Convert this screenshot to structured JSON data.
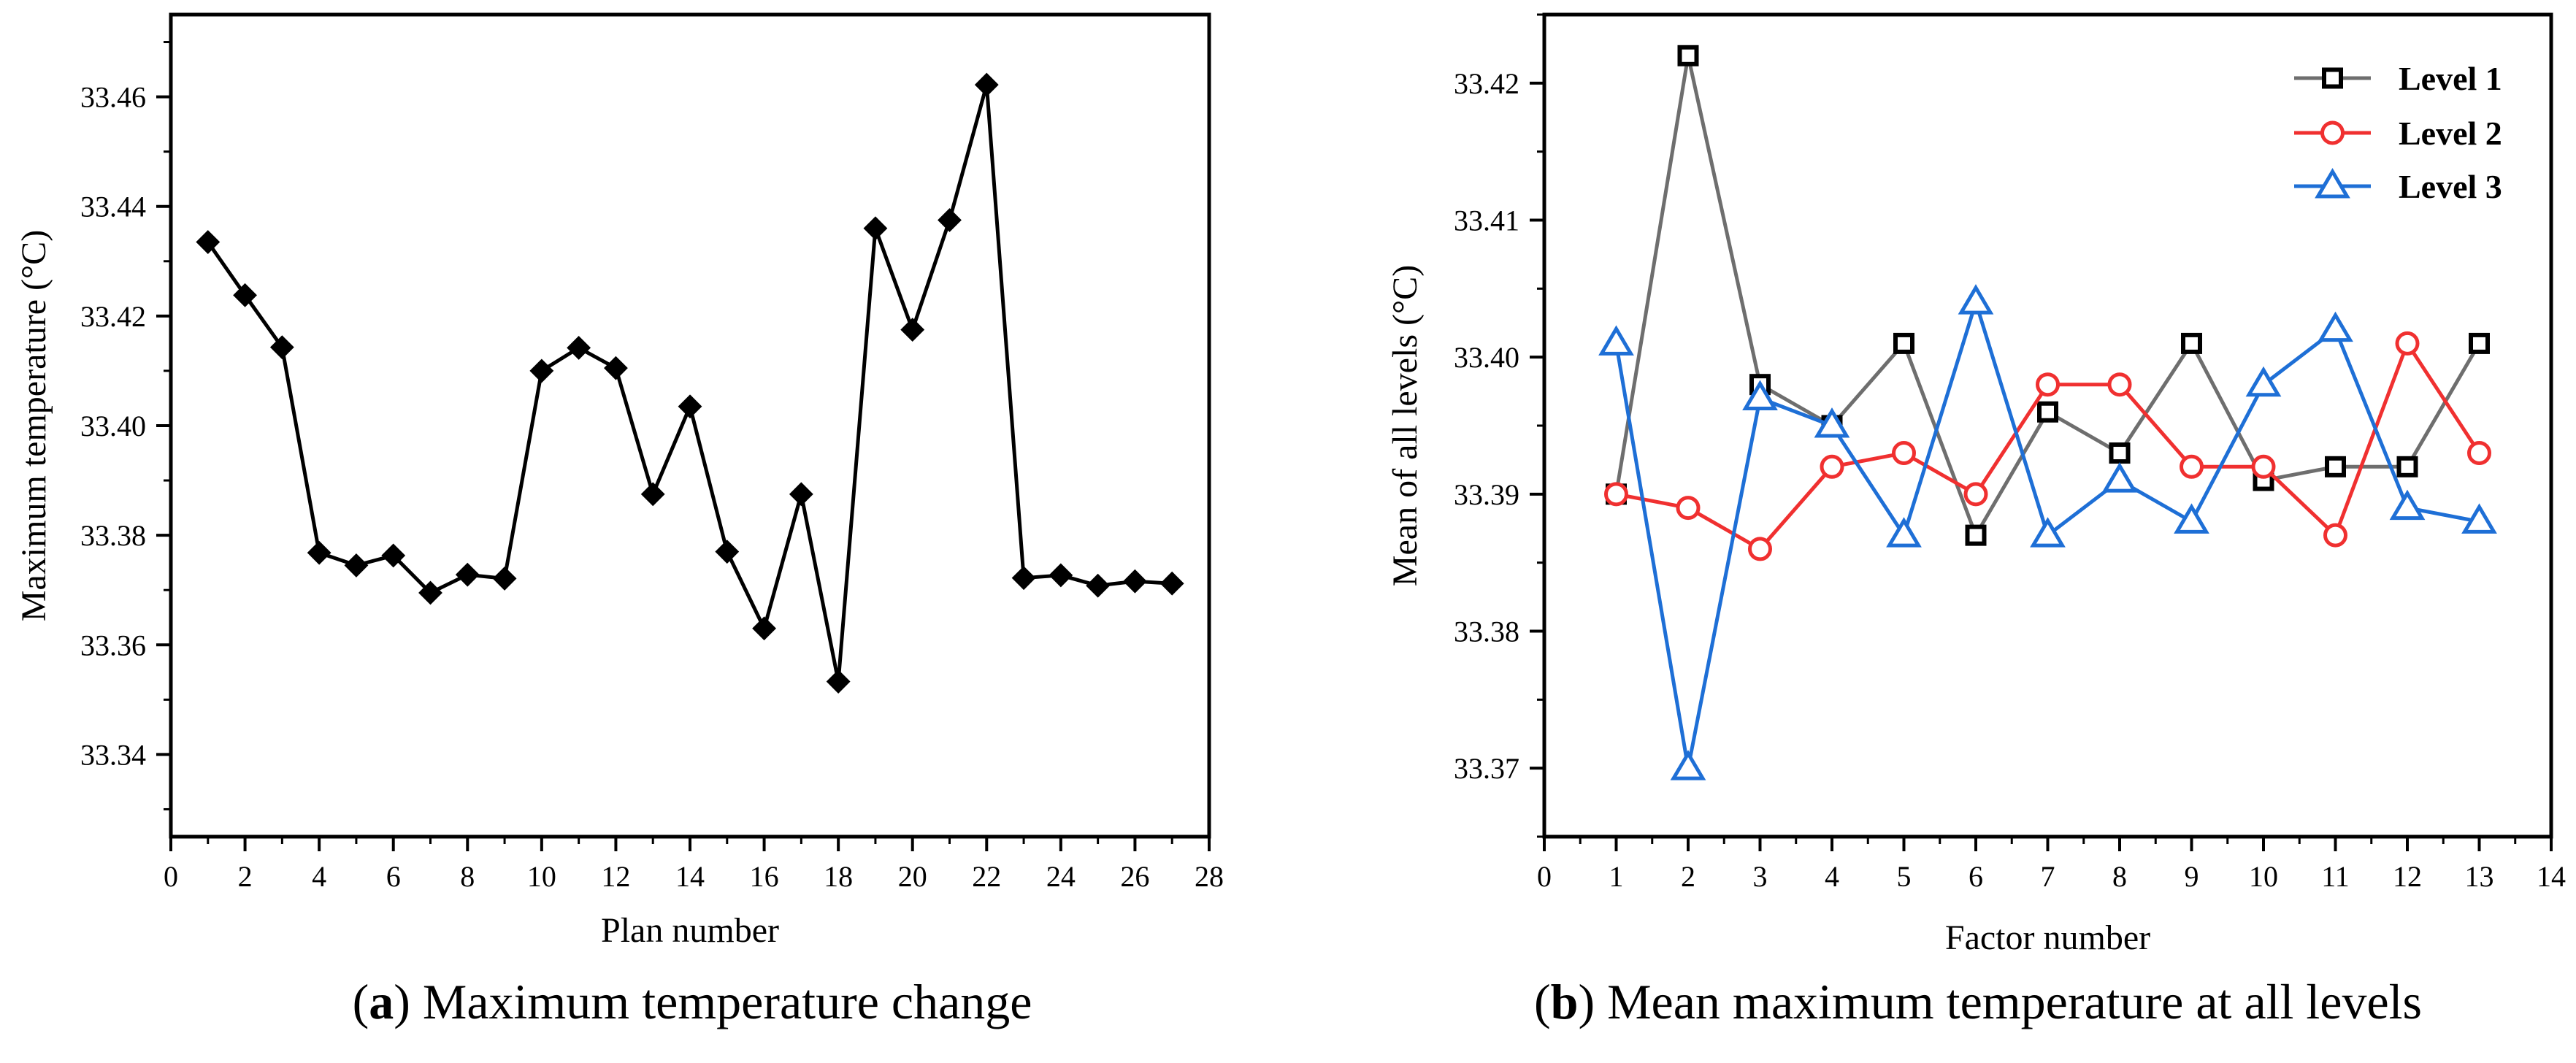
{
  "captions": [
    {
      "letter": "a",
      "text": " Maximum temperature change"
    },
    {
      "letter": "b",
      "text": " Mean maximum temperature at all levels"
    }
  ],
  "chart_data": [
    {
      "type": "line",
      "xlabel": "Plan number",
      "ylabel": "Maximum temperature (°C)",
      "xlim": [
        0,
        28
      ],
      "ylim": [
        33.325,
        33.475
      ],
      "xticks": [
        0,
        2,
        4,
        6,
        8,
        10,
        12,
        14,
        16,
        18,
        20,
        22,
        24,
        26,
        28
      ],
      "yticks": [
        33.34,
        33.36,
        33.38,
        33.4,
        33.42,
        33.44,
        33.46
      ],
      "ytick_labels": [
        "33.34",
        "33.36",
        "33.38",
        "33.40",
        "33.42",
        "33.44",
        "33.46"
      ],
      "series": [
        {
          "color": "#000000",
          "marker": "diamond",
          "x": [
            1,
            2,
            3,
            4,
            5,
            6,
            7,
            8,
            9,
            10,
            11,
            12,
            13,
            14,
            15,
            16,
            17,
            18,
            19,
            20,
            21,
            22,
            23,
            24,
            25,
            26,
            27
          ],
          "values": [
            33.4335,
            33.4238,
            33.4143,
            33.3768,
            33.3745,
            33.3763,
            33.3695,
            33.3728,
            33.3721,
            33.41,
            33.4142,
            33.4105,
            33.3875,
            33.4035,
            33.377,
            33.363,
            33.3875,
            33.3533,
            33.436,
            33.4175,
            33.4375,
            33.4622,
            33.3722,
            33.3727,
            33.3708,
            33.3716,
            33.3712
          ]
        }
      ]
    },
    {
      "type": "line",
      "xlabel": "Factor number",
      "ylabel": "Mean of all levels (°C)",
      "xlim": [
        0,
        14
      ],
      "ylim": [
        33.365,
        33.425
      ],
      "xticks": [
        0,
        1,
        2,
        3,
        4,
        5,
        6,
        7,
        8,
        9,
        10,
        11,
        12,
        13,
        14
      ],
      "yticks": [
        33.37,
        33.38,
        33.39,
        33.4,
        33.41,
        33.42
      ],
      "ytick_labels": [
        "33.37",
        "33.38",
        "33.39",
        "33.40",
        "33.41",
        "33.42"
      ],
      "legend": "top-right",
      "series": [
        {
          "name": "Level 1",
          "color": "#6e6e6e",
          "marker_color": "#000000",
          "marker": "square",
          "x": [
            1,
            2,
            3,
            4,
            5,
            6,
            7,
            8,
            9,
            10,
            11,
            12,
            13
          ],
          "values": [
            33.39,
            33.422,
            33.398,
            33.395,
            33.401,
            33.387,
            33.396,
            33.393,
            33.401,
            33.391,
            33.392,
            33.392,
            33.401
          ]
        },
        {
          "name": "Level 2",
          "color": "#f03030",
          "marker_color": "#f03030",
          "marker": "circle",
          "x": [
            1,
            2,
            3,
            4,
            5,
            6,
            7,
            8,
            9,
            10,
            11,
            12,
            13
          ],
          "values": [
            33.39,
            33.389,
            33.386,
            33.392,
            33.393,
            33.39,
            33.398,
            33.398,
            33.392,
            33.392,
            33.387,
            33.401,
            33.393
          ]
        },
        {
          "name": "Level 3",
          "color": "#1e6fd6",
          "marker_color": "#1e6fd6",
          "marker": "triangle",
          "x": [
            1,
            2,
            3,
            4,
            5,
            6,
            7,
            8,
            9,
            10,
            11,
            12,
            13
          ],
          "values": [
            33.401,
            33.37,
            33.397,
            33.395,
            33.387,
            33.404,
            33.387,
            33.391,
            33.388,
            33.398,
            33.402,
            33.389,
            33.388
          ]
        }
      ]
    }
  ]
}
